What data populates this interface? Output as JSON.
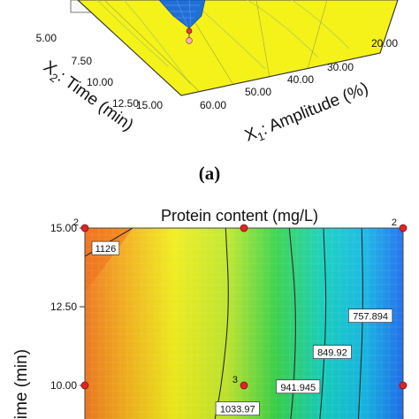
{
  "chart_data": [
    {
      "type": "surface",
      "panel": "(a)",
      "x2_ticks": [
        "5.00",
        "7.50",
        "10.00",
        "12.50",
        "15.00"
      ],
      "x1_ticks": [
        "60.00",
        "50.00",
        "40.00",
        "30.00",
        "20.00"
      ],
      "xlabel_prefix": "X",
      "xlabel_sub": "1",
      "xlabel_rest": ": Amplitude (%)",
      "ylabel_prefix": "X",
      "ylabel_sub": "2",
      "ylabel_rest": ": Time (min)",
      "colors": {
        "surface": "#f5f21a",
        "surface_line": "#b7cf45",
        "peak": "#1f6fd6",
        "point": "#e23a3a"
      }
    },
    {
      "type": "heatmap",
      "title": "Protein content (mg/L)",
      "xlim": [
        60,
        20
      ],
      "ylim": [
        5,
        15
      ],
      "y_ticks": [
        {
          "value": 15,
          "label": "15.00"
        },
        {
          "value": 12.5,
          "label": "12.50"
        },
        {
          "value": 10,
          "label": "10.00"
        }
      ],
      "ylabel": "Time (min)",
      "contours": [
        {
          "value": 1126,
          "label": "1126",
          "points": [
            [
              60,
              14.1
            ],
            [
              57,
              14.55
            ],
            [
              54,
              15
            ]
          ],
          "label_at": [
            57.4,
            14.35
          ]
        },
        {
          "value": 1033.97,
          "label": "1033.97",
          "points": [
            [
              42.3,
              15
            ],
            [
              41.8,
              12.5
            ],
            [
              42.8,
              10
            ],
            [
              44.0,
              8.5
            ]
          ],
          "label_at": [
            40.8,
            9.25
          ]
        },
        {
          "value": 941.945,
          "label": "941.945",
          "points": [
            [
              34.3,
              15
            ],
            [
              33.4,
              12.5
            ],
            [
              33.7,
              10
            ],
            [
              34.3,
              8.5
            ]
          ],
          "label_at": [
            33.2,
            9.95
          ]
        },
        {
          "value": 849.92,
          "label": "849.92",
          "points": [
            [
              30.0,
              15
            ],
            [
              29.6,
              12.5
            ],
            [
              30.1,
              10
            ],
            [
              30.6,
              8.5
            ]
          ],
          "label_at": [
            28.9,
            11.05
          ]
        },
        {
          "value": 757.894,
          "label": "757.894",
          "points": [
            [
              25.2,
              15
            ],
            [
              25.0,
              12.5
            ],
            [
              25.4,
              10
            ],
            [
              25.7,
              8.5
            ]
          ],
          "label_at": [
            24.1,
            12.2
          ]
        }
      ],
      "design_points": [
        {
          "x": 60,
          "y": 15,
          "label": "2"
        },
        {
          "x": 40,
          "y": 15,
          "label": ""
        },
        {
          "x": 20,
          "y": 15,
          "label": "2"
        },
        {
          "x": 60,
          "y": 10,
          "label": ""
        },
        {
          "x": 40,
          "y": 10,
          "label": "3"
        },
        {
          "x": 20,
          "y": 10,
          "label": ""
        }
      ],
      "colors": {
        "high": "#f07a1f",
        "mid": "#f1f21a",
        "green": "#39d44a",
        "cyan": "#14d1d8",
        "low": "#1e6ff0",
        "point": "#e02424"
      }
    }
  ]
}
